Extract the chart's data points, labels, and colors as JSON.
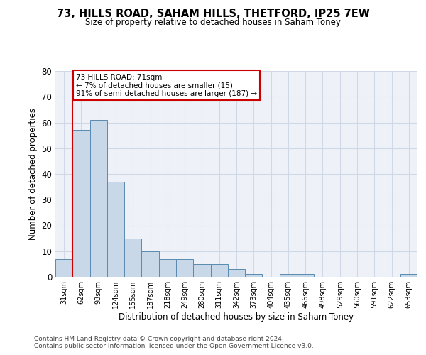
{
  "title1": "73, HILLS ROAD, SAHAM HILLS, THETFORD, IP25 7EW",
  "title2": "Size of property relative to detached houses in Saham Toney",
  "xlabel": "Distribution of detached houses by size in Saham Toney",
  "ylabel": "Number of detached properties",
  "bins": [
    "31sqm",
    "62sqm",
    "93sqm",
    "124sqm",
    "155sqm",
    "187sqm",
    "218sqm",
    "249sqm",
    "280sqm",
    "311sqm",
    "342sqm",
    "373sqm",
    "404sqm",
    "435sqm",
    "466sqm",
    "498sqm",
    "529sqm",
    "560sqm",
    "591sqm",
    "622sqm",
    "653sqm"
  ],
  "values": [
    7,
    57,
    61,
    37,
    15,
    10,
    7,
    7,
    5,
    5,
    3,
    1,
    0,
    1,
    1,
    0,
    0,
    0,
    0,
    0,
    1
  ],
  "bar_color": "#c8d8e8",
  "bar_edge_color": "#5a8ab0",
  "grid_color": "#d0d8e8",
  "background_color": "#eef2f8",
  "annotation_line1": "73 HILLS ROAD: 71sqm",
  "annotation_line2": "← 7% of detached houses are smaller (15)",
  "annotation_line3": "91% of semi-detached houses are larger (187) →",
  "annotation_box_color": "#ffffff",
  "annotation_box_edge_color": "#cc0000",
  "ref_line_color": "#cc0000",
  "ylim": [
    0,
    80
  ],
  "yticks": [
    0,
    10,
    20,
    30,
    40,
    50,
    60,
    70,
    80
  ],
  "footer1": "Contains HM Land Registry data © Crown copyright and database right 2024.",
  "footer2": "Contains public sector information licensed under the Open Government Licence v3.0."
}
